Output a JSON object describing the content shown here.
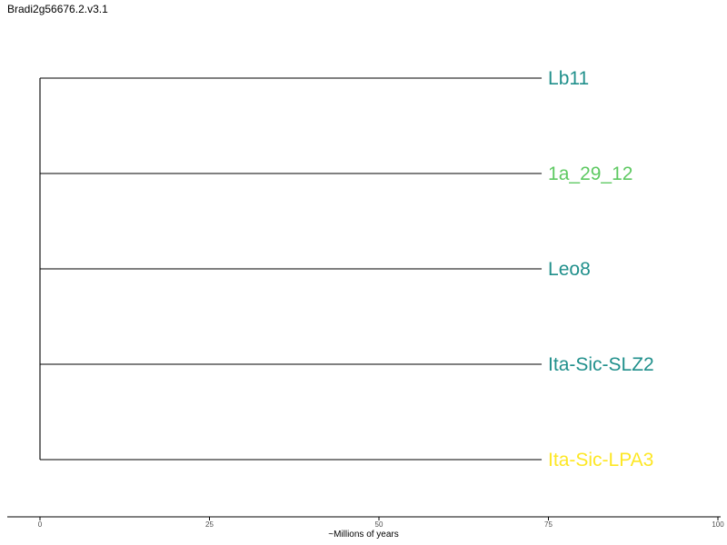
{
  "chart_data": {
    "type": "dendrogram",
    "title": "Bradi2g56676.2.v3.1",
    "xlabel": "~Millions of years",
    "ylabel": "",
    "xlim": [
      0,
      100
    ],
    "x_ticks": [
      0,
      25,
      50,
      75,
      100
    ],
    "grid": false,
    "root_age": 74,
    "leaves": [
      {
        "label": "Lb11",
        "color": "#21908c",
        "branch_length": 74
      },
      {
        "label": "1a_29_12",
        "color": "#5ec962",
        "branch_length": 74
      },
      {
        "label": "Leo8",
        "color": "#21908c",
        "branch_length": 74
      },
      {
        "label": "Ita-Sic-SLZ2",
        "color": "#21908c",
        "branch_length": 74
      },
      {
        "label": "Ita-Sic-LPA3",
        "color": "#fde725",
        "branch_length": 74
      }
    ]
  }
}
